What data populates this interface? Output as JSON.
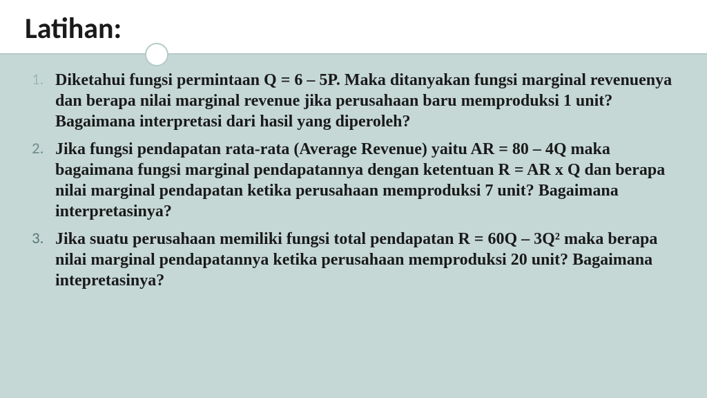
{
  "slide": {
    "title": "Latihan:",
    "background_color": "#c5d8d6",
    "title_bg": "#ffffff",
    "divider_color": "#b5cac8",
    "title_font": "Calibri",
    "body_font": "Georgia",
    "title_fontsize": 42,
    "body_fontsize": 24,
    "body_lineheight": 1.25,
    "text_color": "#1a1a1a",
    "number_colors": [
      "#a0b8b5",
      "#6e8d8a",
      "#5a7a77"
    ],
    "items": [
      "Diketahui fungsi permintaan Q = 6 – 5P. Maka ditanyakan fungsi marginal revenuenya dan berapa nilai marginal revenue jika perusahaan baru memproduksi 1 unit? Bagaimana interpretasi dari hasil yang diperoleh?",
      "Jika fungsi pendapatan rata-rata (Average Revenue) yaitu AR = 80 – 4Q maka bagaimana fungsi marginal pendapatannya dengan ketentuan R = AR x Q dan berapa nilai marginal pendapatan ketika perusahaan memproduksi 7 unit? Bagaimana interpretasinya?",
      "Jika suatu perusahaan memiliki fungsi total pendapatan R = 60Q – 3Q² maka berapa nilai marginal pendapatannya ketika perusahaan memproduksi 20 unit? Bagaimana intepretasinya?"
    ]
  }
}
